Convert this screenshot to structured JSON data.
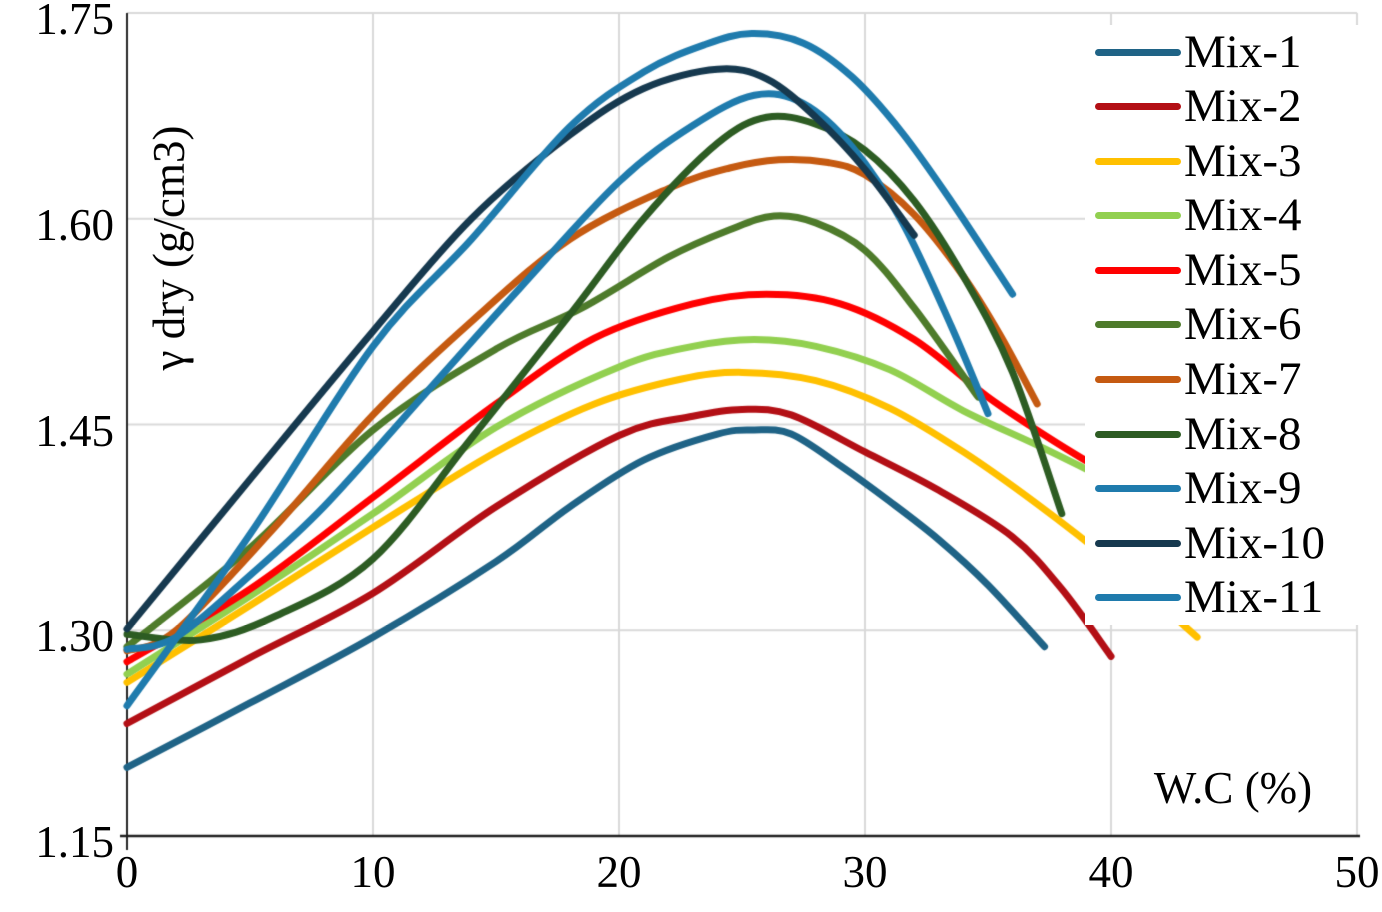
{
  "chart_data": {
    "type": "line",
    "title": "",
    "xlabel": "W.C (%)",
    "ylabel": "γ dry (g/cm3)",
    "xlim": [
      0,
      50
    ],
    "ylim": [
      1.15,
      1.75
    ],
    "xticks": [
      "0",
      "10",
      "20",
      "30",
      "40",
      "50"
    ],
    "yticks": [
      "1.15",
      "1.30",
      "1.45",
      "1.60",
      "1.75"
    ],
    "grid": true,
    "legend_position": "right",
    "series": [
      {
        "name": "Mix-1",
        "color": "#1F6386",
        "points": [
          [
            0,
            1.2
          ],
          [
            5,
            1.247
          ],
          [
            10,
            1.295
          ],
          [
            15,
            1.35
          ],
          [
            18,
            1.39
          ],
          [
            21,
            1.424
          ],
          [
            24,
            1.443
          ],
          [
            25.5,
            1.446
          ],
          [
            27,
            1.443
          ],
          [
            29,
            1.42
          ],
          [
            31,
            1.394
          ],
          [
            33,
            1.366
          ],
          [
            35,
            1.333
          ],
          [
            37.3,
            1.288
          ]
        ]
      },
      {
        "name": "Mix-2",
        "color": "#B30F15",
        "points": [
          [
            0,
            1.232
          ],
          [
            5,
            1.28
          ],
          [
            10,
            1.327
          ],
          [
            15,
            1.39
          ],
          [
            20,
            1.442
          ],
          [
            23,
            1.456
          ],
          [
            25,
            1.461
          ],
          [
            27,
            1.457
          ],
          [
            30,
            1.43
          ],
          [
            33,
            1.402
          ],
          [
            36,
            1.368
          ],
          [
            38,
            1.33
          ],
          [
            40,
            1.281
          ]
        ]
      },
      {
        "name": "Mix-3",
        "color": "#FFC000",
        "points": [
          [
            0,
            1.262
          ],
          [
            5,
            1.318
          ],
          [
            10,
            1.375
          ],
          [
            15,
            1.43
          ],
          [
            19,
            1.465
          ],
          [
            22.5,
            1.483
          ],
          [
            25,
            1.488
          ],
          [
            28,
            1.482
          ],
          [
            31,
            1.462
          ],
          [
            34,
            1.43
          ],
          [
            37,
            1.392
          ],
          [
            40,
            1.35
          ],
          [
            43.5,
            1.295
          ]
        ]
      },
      {
        "name": "Mix-4",
        "color": "#92D050",
        "points": [
          [
            0,
            1.268
          ],
          [
            5,
            1.325
          ],
          [
            10,
            1.385
          ],
          [
            15,
            1.448
          ],
          [
            20,
            1.492
          ],
          [
            23,
            1.507
          ],
          [
            25.5,
            1.512
          ],
          [
            28,
            1.507
          ],
          [
            31,
            1.49
          ],
          [
            34,
            1.46
          ],
          [
            37,
            1.435
          ],
          [
            39.5,
            1.413
          ]
        ]
      },
      {
        "name": "Mix-5",
        "color": "#FF0000",
        "points": [
          [
            0,
            1.277
          ],
          [
            5,
            1.33
          ],
          [
            10,
            1.397
          ],
          [
            15,
            1.465
          ],
          [
            19,
            1.513
          ],
          [
            23,
            1.538
          ],
          [
            26,
            1.545
          ],
          [
            29,
            1.538
          ],
          [
            32,
            1.512
          ],
          [
            35,
            1.47
          ],
          [
            37.5,
            1.44
          ],
          [
            39.5,
            1.418
          ]
        ]
      },
      {
        "name": "Mix-6",
        "color": "#4E7B2B",
        "points": [
          [
            0,
            1.288
          ],
          [
            5,
            1.36
          ],
          [
            10,
            1.446
          ],
          [
            15,
            1.505
          ],
          [
            18.5,
            1.535
          ],
          [
            22,
            1.572
          ],
          [
            24.5,
            1.592
          ],
          [
            26.3,
            1.602
          ],
          [
            28,
            1.597
          ],
          [
            30,
            1.577
          ],
          [
            32,
            1.535
          ],
          [
            34.6,
            1.47
          ]
        ]
      },
      {
        "name": "Mix-7",
        "color": "#C55A11",
        "points": [
          [
            0,
            1.285
          ],
          [
            2,
            1.3
          ],
          [
            6,
            1.375
          ],
          [
            10,
            1.457
          ],
          [
            14,
            1.525
          ],
          [
            18,
            1.585
          ],
          [
            22,
            1.622
          ],
          [
            24.5,
            1.637
          ],
          [
            26.5,
            1.643
          ],
          [
            28.5,
            1.641
          ],
          [
            30,
            1.632
          ],
          [
            32,
            1.603
          ],
          [
            34,
            1.558
          ],
          [
            35.5,
            1.515
          ],
          [
            37,
            1.465
          ]
        ]
      },
      {
        "name": "Mix-8",
        "color": "#2D5C23",
        "points": [
          [
            0,
            1.297
          ],
          [
            3,
            1.293
          ],
          [
            6,
            1.31
          ],
          [
            10,
            1.352
          ],
          [
            14,
            1.44
          ],
          [
            18,
            1.53
          ],
          [
            21,
            1.6
          ],
          [
            24,
            1.655
          ],
          [
            26,
            1.674
          ],
          [
            28,
            1.669
          ],
          [
            30,
            1.65
          ],
          [
            32,
            1.613
          ],
          [
            34,
            1.558
          ],
          [
            36,
            1.488
          ],
          [
            38,
            1.385
          ]
        ]
      },
      {
        "name": "Mix-9",
        "color": "#1F7BAD",
        "points": [
          [
            0,
            1.286
          ],
          [
            2,
            1.295
          ],
          [
            5,
            1.34
          ],
          [
            8,
            1.39
          ],
          [
            12,
            1.47
          ],
          [
            16,
            1.55
          ],
          [
            20,
            1.627
          ],
          [
            23,
            1.668
          ],
          [
            25.5,
            1.69
          ],
          [
            27.5,
            1.684
          ],
          [
            29.5,
            1.652
          ],
          [
            31.5,
            1.598
          ],
          [
            33.5,
            1.522
          ],
          [
            35,
            1.458
          ]
        ]
      },
      {
        "name": "Mix-10",
        "color": "#16394F",
        "points": [
          [
            0,
            1.301
          ],
          [
            5,
            1.41
          ],
          [
            10,
            1.518
          ],
          [
            14,
            1.6
          ],
          [
            18,
            1.661
          ],
          [
            21,
            1.695
          ],
          [
            24,
            1.709
          ],
          [
            26,
            1.702
          ],
          [
            28,
            1.674
          ],
          [
            30,
            1.636
          ],
          [
            32,
            1.588
          ]
        ]
      },
      {
        "name": "Mix-11",
        "color": "#1F7BAD",
        "points": [
          [
            0,
            1.245
          ],
          [
            5,
            1.37
          ],
          [
            10,
            1.507
          ],
          [
            14,
            1.585
          ],
          [
            18,
            1.667
          ],
          [
            21,
            1.707
          ],
          [
            23.5,
            1.727
          ],
          [
            25.4,
            1.735
          ],
          [
            27.5,
            1.728
          ],
          [
            29.5,
            1.703
          ],
          [
            31.5,
            1.663
          ],
          [
            33.5,
            1.613
          ],
          [
            36,
            1.545
          ]
        ]
      }
    ]
  },
  "style": {
    "background": "#FFFFFF",
    "grid_color": "#D9D9D9",
    "border_color": "#D9D9D9",
    "y_axis_color": "#262626",
    "x_axis_color": "#1F1F1F",
    "text_color": "#000000",
    "curve_width": 7
  }
}
